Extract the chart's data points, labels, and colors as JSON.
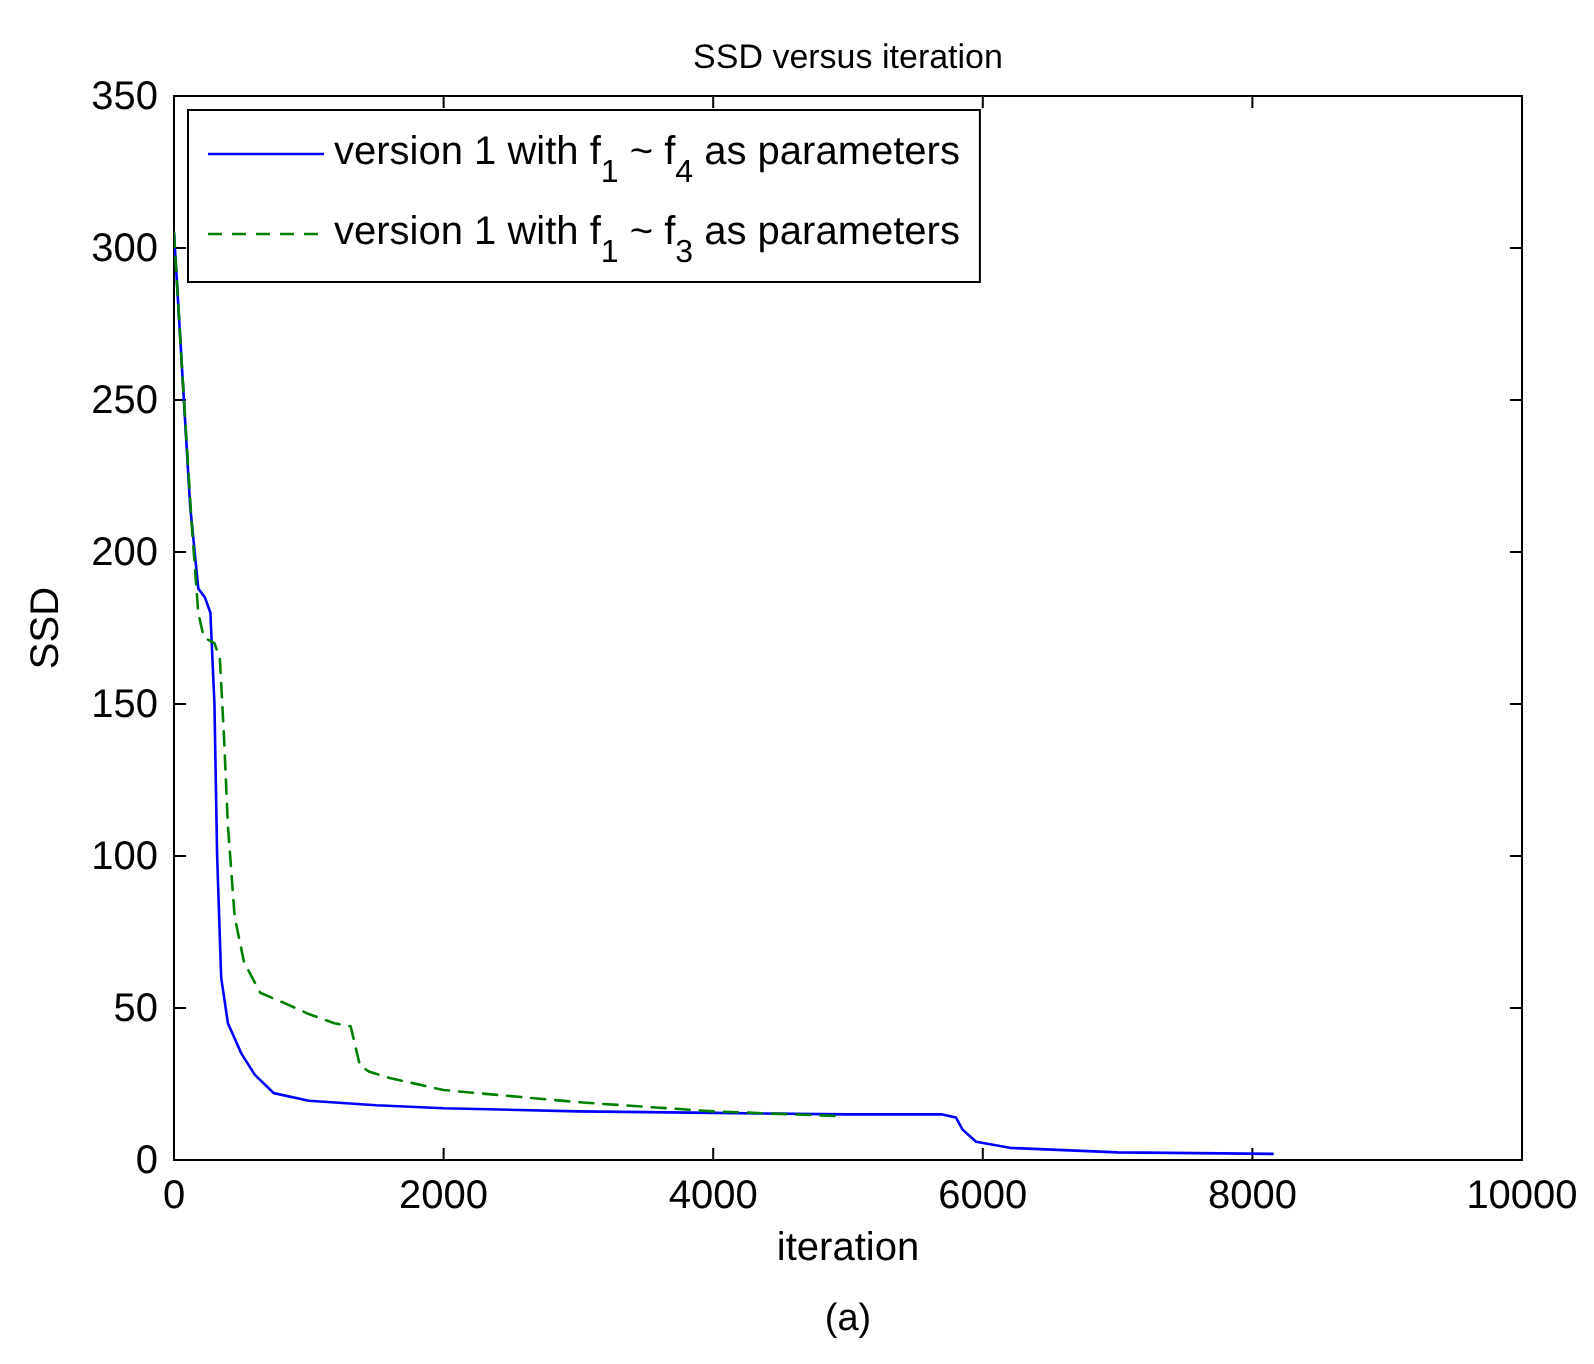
{
  "chart_data": {
    "type": "line",
    "title": "SSD versus iteration",
    "xlabel": "iteration",
    "ylabel": "SSD",
    "xlim": [
      0,
      10000
    ],
    "xticks": [
      0,
      2000,
      4000,
      6000,
      8000,
      10000
    ],
    "ylim": [
      0,
      350
    ],
    "yticks": [
      0,
      50,
      100,
      150,
      200,
      250,
      300,
      350
    ],
    "grid": false,
    "legend": "top left",
    "annotations": [
      "(a)"
    ],
    "series": [
      {
        "name": "version 1 with f$_{1}$ ~ f$_{4}$ as parameters",
        "color": "#0000ff",
        "line_style": "solid",
        "x": [
          0,
          60,
          120,
          180,
          230,
          270,
          300,
          320,
          350,
          400,
          500,
          600,
          740,
          1000,
          1500,
          2000,
          3000,
          4000,
          5000,
          5700,
          5800,
          5850,
          5950,
          6200,
          7000,
          8150
        ],
        "values": [
          305,
          260,
          215,
          188,
          185,
          180,
          150,
          100,
          60,
          45,
          35,
          28,
          22,
          19.5,
          18,
          17,
          16,
          15.5,
          15,
          15,
          14,
          10,
          6,
          4,
          2.5,
          2
        ]
      },
      {
        "name": "version 1 with f$_{1}$ ~ f$_{3}$ as parameters",
        "color": "#008000",
        "line_style": "dashed",
        "x": [
          0,
          60,
          130,
          180,
          220,
          300,
          340,
          370,
          400,
          450,
          520,
          640,
          800,
          1000,
          1190,
          1310,
          1380,
          1450,
          1600,
          2000,
          3000,
          4000,
          4900
        ],
        "values": [
          305,
          260,
          210,
          180,
          172,
          170,
          165,
          140,
          110,
          80,
          65,
          55,
          52,
          48,
          45,
          44,
          31,
          29,
          27,
          23,
          19,
          16,
          14.5
        ]
      }
    ]
  }
}
